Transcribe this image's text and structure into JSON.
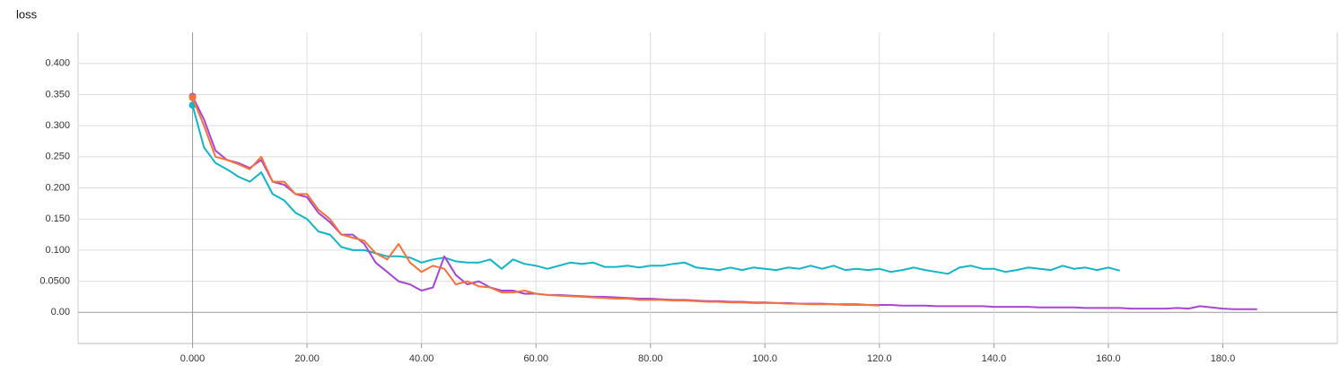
{
  "chart_data": {
    "type": "line",
    "title": "loss",
    "x": [
      0,
      2,
      4,
      6,
      8,
      10,
      12,
      14,
      16,
      18,
      20,
      22,
      24,
      26,
      28,
      30,
      32,
      34,
      36,
      38,
      40,
      42,
      44,
      46,
      48,
      50,
      52,
      54,
      56,
      58,
      60,
      62,
      64,
      66,
      68,
      70,
      72,
      74,
      76,
      78,
      80,
      82,
      84,
      86,
      88,
      90,
      92,
      94,
      96,
      98,
      100,
      102,
      104,
      106,
      108,
      110,
      112,
      114,
      116,
      118,
      120,
      122,
      124,
      126,
      128,
      130,
      132,
      134,
      136,
      138,
      140,
      142,
      144,
      146,
      148,
      150,
      152,
      154,
      156,
      158,
      160,
      162,
      164,
      166,
      168,
      170,
      172,
      174,
      176,
      178,
      180,
      182,
      184,
      186
    ],
    "series": [
      {
        "color": "#12b5c7",
        "values": [
          0.333,
          0.265,
          0.24,
          0.23,
          0.218,
          0.21,
          0.225,
          0.19,
          0.18,
          0.16,
          0.15,
          0.13,
          0.125,
          0.105,
          0.1,
          0.1,
          0.095,
          0.09,
          0.09,
          0.088,
          0.08,
          0.085,
          0.088,
          0.082,
          0.08,
          0.08,
          0.085,
          0.07,
          0.085,
          0.078,
          0.075,
          0.07,
          0.075,
          0.08,
          0.078,
          0.08,
          0.073,
          0.073,
          0.075,
          0.072,
          0.075,
          0.075,
          0.078,
          0.08,
          0.072,
          0.07,
          0.068,
          0.072,
          0.068,
          0.072,
          0.07,
          0.068,
          0.072,
          0.07,
          0.075,
          0.07,
          0.075,
          0.068,
          0.07,
          0.068,
          0.07,
          0.065,
          0.068,
          0.072,
          0.068,
          0.065,
          0.062,
          0.072,
          0.075,
          0.07,
          0.07,
          0.065,
          0.068,
          0.072,
          0.07,
          0.068,
          0.075,
          0.07,
          0.072,
          0.068,
          0.072,
          0.067,
          null,
          null,
          null,
          null,
          null,
          null,
          null,
          null,
          null,
          null,
          null,
          null
        ]
      },
      {
        "color": "#a746d4",
        "values": [
          0.347,
          0.31,
          0.26,
          0.245,
          0.24,
          0.232,
          0.245,
          0.21,
          0.205,
          0.19,
          0.185,
          0.16,
          0.145,
          0.125,
          0.125,
          0.11,
          0.08,
          0.065,
          0.05,
          0.045,
          0.035,
          0.04,
          0.09,
          0.06,
          0.045,
          0.05,
          0.04,
          0.035,
          0.035,
          0.03,
          0.03,
          0.028,
          0.028,
          0.027,
          0.026,
          0.025,
          0.025,
          0.024,
          0.023,
          0.022,
          0.022,
          0.021,
          0.02,
          0.02,
          0.019,
          0.018,
          0.018,
          0.017,
          0.017,
          0.016,
          0.016,
          0.015,
          0.015,
          0.014,
          0.014,
          0.014,
          0.013,
          0.013,
          0.013,
          0.012,
          0.012,
          0.012,
          0.011,
          0.011,
          0.011,
          0.01,
          0.01,
          0.01,
          0.01,
          0.01,
          0.009,
          0.009,
          0.009,
          0.009,
          0.008,
          0.008,
          0.008,
          0.008,
          0.007,
          0.007,
          0.007,
          0.007,
          0.006,
          0.006,
          0.006,
          0.006,
          0.007,
          0.006,
          0.01,
          0.008,
          0.006,
          0.005,
          0.005,
          0.005
        ]
      },
      {
        "color": "#f4733c",
        "values": [
          0.345,
          0.3,
          0.25,
          0.245,
          0.238,
          0.23,
          0.25,
          0.21,
          0.21,
          0.19,
          0.19,
          0.165,
          0.15,
          0.125,
          0.12,
          0.115,
          0.095,
          0.085,
          0.11,
          0.08,
          0.065,
          0.075,
          0.07,
          0.045,
          0.05,
          0.042,
          0.04,
          0.032,
          0.032,
          0.035,
          0.03,
          0.028,
          0.027,
          0.026,
          0.025,
          0.024,
          0.023,
          0.022,
          0.022,
          0.02,
          0.02,
          0.02,
          0.019,
          0.019,
          0.018,
          0.017,
          0.017,
          0.016,
          0.016,
          0.015,
          0.015,
          0.015,
          0.014,
          0.014,
          0.013,
          0.013,
          0.013,
          0.012,
          0.012,
          0.012,
          0.011,
          null,
          null,
          null,
          null,
          null,
          null,
          null,
          null,
          null,
          null,
          null,
          null,
          null,
          null,
          null,
          null,
          null,
          null,
          null,
          null,
          null,
          null,
          null,
          null,
          null,
          null,
          null,
          null,
          null,
          null,
          null,
          null,
          null
        ]
      }
    ],
    "xlim": [
      -20,
      200
    ],
    "xticks": [
      {
        "value": 0,
        "label": "0.000"
      },
      {
        "value": 20,
        "label": "20.00"
      },
      {
        "value": 40,
        "label": "40.00"
      },
      {
        "value": 60,
        "label": "60.00"
      },
      {
        "value": 80,
        "label": "80.00"
      },
      {
        "value": 100,
        "label": "100.0"
      },
      {
        "value": 120,
        "label": "120.0"
      },
      {
        "value": 140,
        "label": "140.0"
      },
      {
        "value": 160,
        "label": "160.0"
      },
      {
        "value": 180,
        "label": "180.0"
      }
    ],
    "ylim": [
      -0.05,
      0.45
    ],
    "yticks": [
      {
        "value": 0,
        "label": "0.00"
      },
      {
        "value": 0.05,
        "label": "0.0500"
      },
      {
        "value": 0.1,
        "label": "0.100"
      },
      {
        "value": 0.15,
        "label": "0.150"
      },
      {
        "value": 0.2,
        "label": "0.200"
      },
      {
        "value": 0.25,
        "label": "0.250"
      },
      {
        "value": 0.3,
        "label": "0.300"
      },
      {
        "value": 0.35,
        "label": "0.350"
      },
      {
        "value": 0.4,
        "label": "0.400"
      }
    ],
    "grid": true
  }
}
